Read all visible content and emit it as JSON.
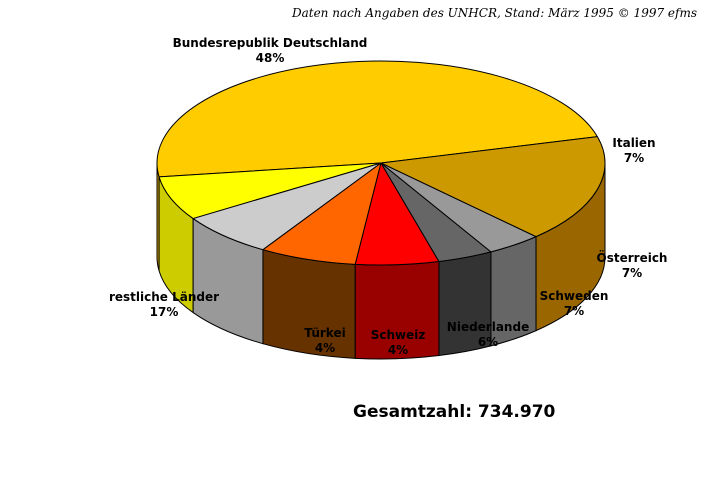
{
  "source_note": "Daten nach Angaben des UNHCR, Stand: März 1995   © 1997 efms",
  "total_label": "Gesamtzahl: 734.970",
  "chart_data": {
    "type": "pie",
    "title": "",
    "three_d": true,
    "slices": [
      {
        "name": "Bundesrepublik Deutschland",
        "percent_label": "48%",
        "value": 48,
        "color": "#FFCC00",
        "side_color": "#D9A300"
      },
      {
        "name": "Italien",
        "percent_label": "7%",
        "value": 7,
        "color": "#FFFF00",
        "side_color": "#CCCC00"
      },
      {
        "name": "Österreich",
        "percent_label": "7%",
        "value": 7,
        "color": "#CCCCCC",
        "side_color": "#999999"
      },
      {
        "name": "Schweden",
        "percent_label": "7%",
        "value": 7,
        "color": "#FF6600",
        "side_color": "#663300"
      },
      {
        "name": "Niederlande",
        "percent_label": "6%",
        "value": 6,
        "color": "#FF0000",
        "side_color": "#990000"
      },
      {
        "name": "Schweiz",
        "percent_label": "4%",
        "value": 4,
        "color": "#666666",
        "side_color": "#333333"
      },
      {
        "name": "Türkei",
        "percent_label": "4%",
        "value": 4,
        "color": "#999999",
        "side_color": "#666666"
      },
      {
        "name": "restliche Länder",
        "percent_label": "17%",
        "value": 17,
        "color": "#CC9900",
        "side_color": "#996600"
      }
    ]
  }
}
